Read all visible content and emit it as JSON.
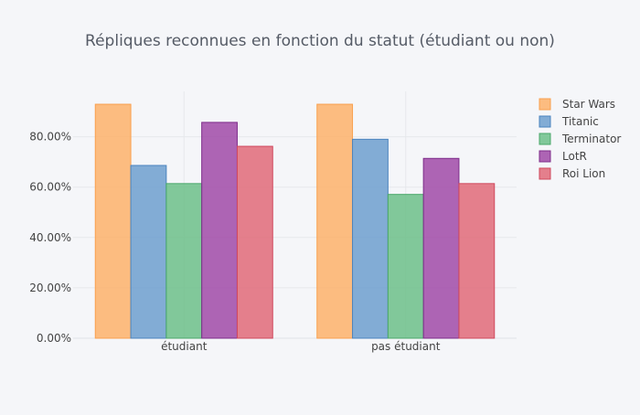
{
  "chart_data": {
    "type": "bar",
    "title": "Répliques reconnues en fonction du statut (étudiant ou non)",
    "xlabel": "",
    "ylabel": "",
    "categories": [
      "étudiant",
      "pas étudiant"
    ],
    "ylim": [
      0,
      0.98
    ],
    "yticks": [
      0,
      0.2,
      0.4,
      0.6,
      0.8
    ],
    "ytick_labels": [
      "0.00%",
      "20.00%",
      "40.00%",
      "60.00%",
      "80.00%"
    ],
    "grid": true,
    "legend_position": "right",
    "series": [
      {
        "name": "Star Wars",
        "values": [
          0.929,
          0.929
        ],
        "color": "#fdb26b",
        "stroke": "#f9a04e"
      },
      {
        "name": "Titanic",
        "values": [
          0.686,
          0.79
        ],
        "color": "#6d9fcf",
        "stroke": "#4b84be"
      },
      {
        "name": "Terminator",
        "values": [
          0.614,
          0.571
        ],
        "color": "#6cc08a",
        "stroke": "#4aa86a"
      },
      {
        "name": "LotR",
        "values": [
          0.857,
          0.714
        ],
        "color": "#a04aa8",
        "stroke": "#7e2d8a"
      },
      {
        "name": "Roi Lion",
        "values": [
          0.762,
          0.614
        ],
        "color": "#e06a79",
        "stroke": "#d0485d"
      }
    ]
  }
}
